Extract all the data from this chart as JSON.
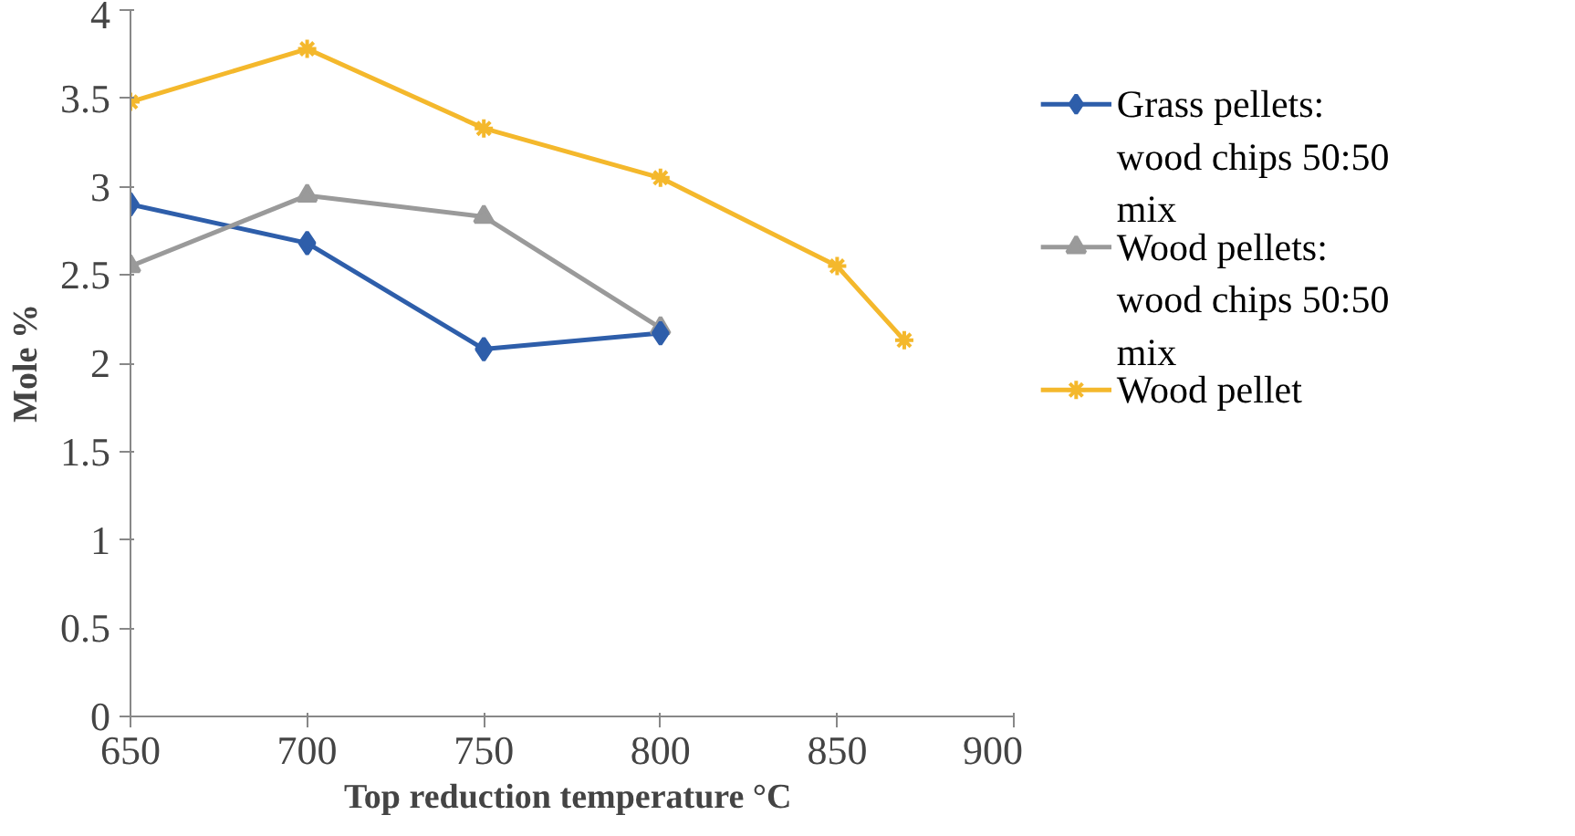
{
  "chart_data": {
    "type": "line",
    "xlabel": "Top reduction temperature  °C",
    "ylabel": "Mole %",
    "xlim": [
      650,
      900
    ],
    "xticks": [
      650,
      700,
      750,
      800,
      850,
      900
    ],
    "ylim": [
      0,
      4
    ],
    "yticks": [
      0,
      0.5,
      1,
      1.5,
      2,
      2.5,
      3,
      3.5,
      4
    ],
    "grid": false,
    "legend": "right",
    "line_style": "solid",
    "series": [
      {
        "name": "Grass pellets: wood chips 50:50 mix",
        "color": "#2e5eaa",
        "marker": "diamond",
        "x": [
          650,
          700,
          750,
          800
        ],
        "values": [
          2.9,
          2.68,
          2.08,
          2.17
        ]
      },
      {
        "name": "Wood pellets: wood chips 50:50 mix",
        "color": "#9a9a9a",
        "marker": "triangle",
        "x": [
          650,
          700,
          750,
          800
        ],
        "values": [
          2.55,
          2.95,
          2.83,
          2.2
        ]
      },
      {
        "name": "Wood pellet",
        "color": "#f4b82c",
        "marker": "cross",
        "x": [
          650,
          700,
          750,
          800,
          850,
          869
        ],
        "values": [
          3.48,
          3.78,
          3.33,
          3.05,
          2.55,
          2.13
        ]
      }
    ]
  }
}
